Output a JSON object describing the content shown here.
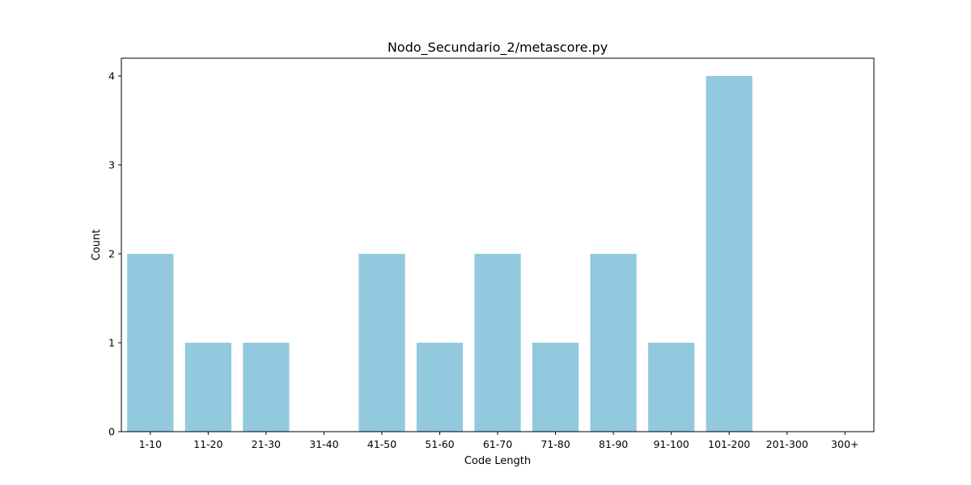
{
  "chart_data": {
    "type": "bar",
    "title": "Nodo_Secundario_2/metascore.py",
    "xlabel": "Code Length",
    "ylabel": "Count",
    "categories": [
      "1-10",
      "11-20",
      "21-30",
      "31-40",
      "41-50",
      "51-60",
      "61-70",
      "71-80",
      "81-90",
      "91-100",
      "101-200",
      "201-300",
      "300+"
    ],
    "values": [
      2,
      1,
      1,
      0,
      2,
      1,
      2,
      1,
      2,
      1,
      4,
      0,
      0
    ],
    "ylim": [
      0,
      4.2
    ],
    "yticks": [
      0,
      1,
      2,
      3,
      4
    ],
    "bar_color": "#92c9df",
    "grid": false,
    "legend": false
  }
}
